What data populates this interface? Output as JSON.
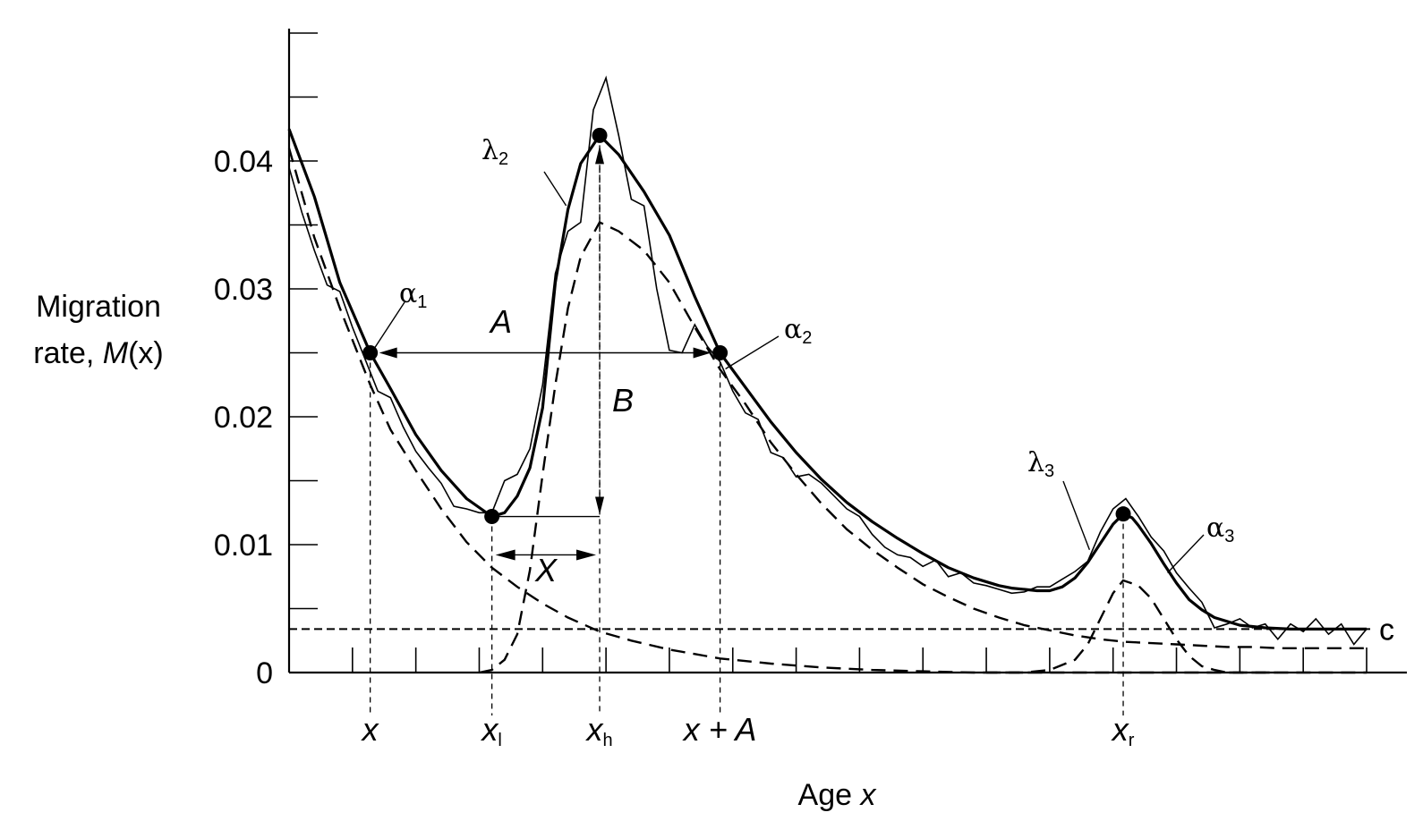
{
  "chart_data": {
    "type": "line",
    "ylabel_line1": "Migration",
    "ylabel_line2": "rate, ",
    "ylabel_italic": "M",
    "ylabel_paren": "(x)",
    "xlabel": "Age ",
    "xlabel_italic": "x",
    "y_ticks": [
      "0",
      "0.01",
      "0.02",
      "0.03",
      "0.04"
    ],
    "y_tick_values": [
      0,
      0.01,
      0.02,
      0.03,
      0.04
    ],
    "ylim": [
      0,
      0.05
    ],
    "xlim": [
      0,
      85
    ],
    "x_markers": [
      {
        "label": "x",
        "sub": "",
        "x": 6.4
      },
      {
        "label": "x",
        "sub": "l",
        "x": 16
      },
      {
        "label": "x",
        "sub": "h",
        "x": 24.5
      },
      {
        "label": "x + A",
        "sub": "",
        "x": 34
      },
      {
        "label": "x",
        "sub": "r",
        "x": 65.8
      }
    ],
    "annotations": {
      "alpha1": {
        "greek": "α",
        "sub": "1"
      },
      "alpha2": {
        "greek": "α",
        "sub": "2"
      },
      "alpha3": {
        "greek": "α",
        "sub": "3"
      },
      "lambda2": {
        "greek": "λ",
        "sub": "2"
      },
      "lambda3": {
        "greek": "λ",
        "sub": "3"
      },
      "A": "A",
      "B": "B",
      "X": "X",
      "c": "c"
    },
    "key_points": [
      {
        "x": 6.4,
        "y": 0.025
      },
      {
        "x": 16,
        "y": 0.0122
      },
      {
        "x": 24.5,
        "y": 0.042
      },
      {
        "x": 34,
        "y": 0.025
      },
      {
        "x": 65.8,
        "y": 0.0124
      }
    ],
    "constant_c": 0.0034,
    "series": [
      {
        "style": "fitted-solid",
        "x": [
          0,
          2,
          4,
          6.4,
          8,
          10,
          12,
          14,
          16,
          17,
          18,
          19,
          20,
          21,
          22,
          23,
          24.5,
          26,
          28,
          30,
          32,
          34,
          36,
          38,
          40,
          42,
          44,
          46,
          48,
          50,
          52,
          54,
          56,
          57,
          58,
          59,
          60,
          61,
          62,
          63,
          64,
          65,
          65.8,
          66.5,
          67,
          68,
          69,
          70,
          71,
          72,
          73,
          75,
          77,
          79,
          81,
          83,
          85
        ],
        "y": [
          0.0425,
          0.0372,
          0.0305,
          0.025,
          0.0222,
          0.0186,
          0.0158,
          0.0136,
          0.0122,
          0.0125,
          0.0138,
          0.016,
          0.0207,
          0.0305,
          0.0362,
          0.0398,
          0.042,
          0.0405,
          0.0376,
          0.0342,
          0.0294,
          0.025,
          0.0223,
          0.0196,
          0.0172,
          0.0151,
          0.0133,
          0.0118,
          0.0105,
          0.0093,
          0.0082,
          0.0074,
          0.0068,
          0.0066,
          0.0065,
          0.0064,
          0.0064,
          0.0067,
          0.0074,
          0.0086,
          0.0101,
          0.0116,
          0.0124,
          0.0121,
          0.0115,
          0.0101,
          0.0085,
          0.007,
          0.0057,
          0.0049,
          0.0043,
          0.0037,
          0.0035,
          0.0034,
          0.0034,
          0.0034,
          0.0034
        ]
      },
      {
        "style": "observed-thin",
        "x": [
          0,
          1,
          2,
          3,
          4,
          5,
          6,
          7,
          8,
          9,
          10,
          11,
          12,
          13,
          14,
          15,
          16,
          17,
          18,
          19,
          20,
          21,
          22,
          23,
          24,
          25,
          26,
          27,
          28,
          29,
          30,
          31,
          32,
          33,
          34,
          35,
          36,
          37,
          38,
          39,
          40,
          41,
          42,
          43,
          44,
          45,
          46,
          47,
          48,
          49,
          50,
          51,
          52,
          53,
          54,
          55,
          56,
          57,
          58,
          59,
          60,
          61,
          62,
          63,
          64,
          65,
          66,
          67,
          68,
          69,
          70,
          71,
          72,
          73,
          74,
          75,
          76,
          77,
          78,
          79,
          80,
          81,
          82,
          83,
          84,
          85
        ],
        "y": [
          0.0395,
          0.036,
          0.033,
          0.0303,
          0.0298,
          0.027,
          0.0245,
          0.022,
          0.0215,
          0.0192,
          0.0173,
          0.016,
          0.0148,
          0.013,
          0.0128,
          0.0125,
          0.0125,
          0.015,
          0.0155,
          0.0175,
          0.0225,
          0.0312,
          0.0345,
          0.0352,
          0.044,
          0.0465,
          0.042,
          0.037,
          0.0365,
          0.03,
          0.0252,
          0.025,
          0.0272,
          0.0255,
          0.0243,
          0.022,
          0.0203,
          0.0198,
          0.0172,
          0.0168,
          0.0153,
          0.0155,
          0.0148,
          0.0138,
          0.0128,
          0.0122,
          0.0108,
          0.0098,
          0.0092,
          0.009,
          0.0083,
          0.0088,
          0.0075,
          0.0078,
          0.007,
          0.0068,
          0.0065,
          0.0062,
          0.0063,
          0.0067,
          0.0067,
          0.0073,
          0.0079,
          0.0087,
          0.011,
          0.0128,
          0.0136,
          0.0122,
          0.0106,
          0.0095,
          0.0078,
          0.0066,
          0.0055,
          0.0035,
          0.0038,
          0.0042,
          0.0035,
          0.0038,
          0.0026,
          0.0038,
          0.0032,
          0.0042,
          0.003,
          0.0038,
          0.0022,
          0.0034
        ]
      },
      {
        "style": "dashed-childhood",
        "x": [
          0,
          2,
          4,
          6.4,
          8,
          10,
          12,
          14,
          16,
          18,
          20,
          22,
          24.5,
          27,
          30,
          34,
          38,
          42,
          46,
          50,
          54,
          58,
          62,
          66,
          70,
          75,
          80,
          85
        ],
        "y": [
          0.041,
          0.034,
          0.0285,
          0.0225,
          0.019,
          0.0158,
          0.0128,
          0.0102,
          0.0082,
          0.0067,
          0.0054,
          0.0043,
          0.0032,
          0.0025,
          0.0018,
          0.0011,
          0.0007,
          0.0004,
          0.0002,
          0.0001,
          0,
          0,
          0,
          0,
          0,
          0,
          0,
          0
        ]
      },
      {
        "style": "dashed-labor",
        "x": [
          15,
          16,
          17,
          18,
          19,
          20,
          21,
          22,
          23,
          24.5,
          26,
          28,
          30,
          32,
          34,
          36,
          38,
          40,
          42,
          44,
          46,
          48,
          50,
          52,
          54,
          56,
          58,
          60,
          62,
          64,
          66,
          68,
          70,
          72,
          74,
          76,
          78,
          80,
          82,
          84,
          85
        ],
        "y": [
          0,
          0.0002,
          0.001,
          0.003,
          0.008,
          0.0155,
          0.0225,
          0.0285,
          0.0325,
          0.0352,
          0.0345,
          0.033,
          0.0305,
          0.027,
          0.0237,
          0.021,
          0.018,
          0.0155,
          0.0132,
          0.0112,
          0.0096,
          0.0082,
          0.0069,
          0.0059,
          0.005,
          0.0043,
          0.0037,
          0.0033,
          0.0029,
          0.0026,
          0.0024,
          0.0023,
          0.0022,
          0.0021,
          0.002,
          0.002,
          0.0019,
          0.0019,
          0.0019,
          0.0019,
          0.0019
        ]
      },
      {
        "style": "dashed-retirement",
        "x": [
          55,
          58,
          60,
          62,
          63,
          64,
          65,
          65.8,
          67,
          68,
          69,
          70,
          71,
          72,
          73,
          74,
          76,
          78
        ],
        "y": [
          0,
          0,
          0.0002,
          0.001,
          0.0022,
          0.0042,
          0.0062,
          0.0072,
          0.0068,
          0.0058,
          0.0042,
          0.0026,
          0.0013,
          0.0005,
          0.0002,
          0,
          0,
          0
        ]
      }
    ]
  }
}
